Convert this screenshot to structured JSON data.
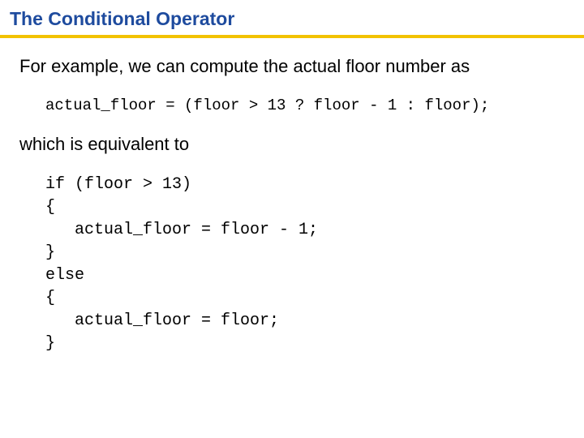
{
  "title": "The Conditional Operator",
  "title_color": "#1e4b9e",
  "underline_color": "#f2c200",
  "para1": "For example, we can compute the actual floor number as",
  "code1": "actual_floor = (floor > 13 ? floor - 1 : floor);",
  "para2": "which is equivalent to",
  "code_block": "if (floor > 13)\n{\n   actual_floor = floor - 1;\n}\nelse\n{\n   actual_floor = floor;\n}",
  "body_fontsize": 22,
  "code_fontsize": 19,
  "background_color": "#ffffff"
}
